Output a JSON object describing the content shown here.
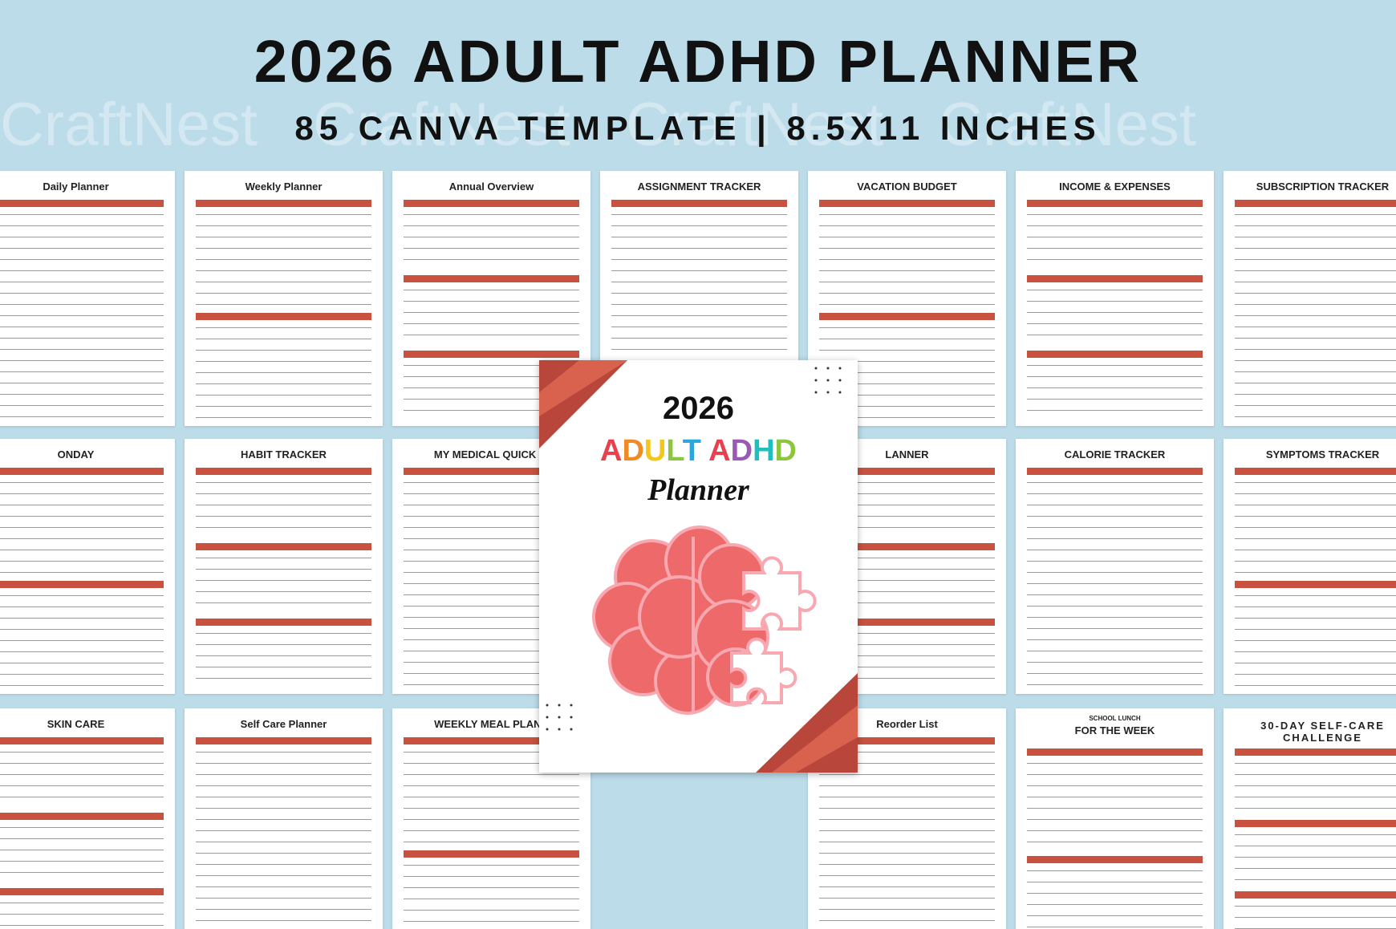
{
  "header": {
    "title": "2026 ADULT ADHD PLANNER",
    "subtitle": "85 CANVA TEMPLATE | 8.5X11 INCHES",
    "watermark": "CraftNest"
  },
  "pages": [
    [
      {
        "title": "Daily Planner"
      },
      {
        "title": "Weekly Planner"
      },
      {
        "title": "Annual Overview"
      },
      {
        "title": "ASSIGNMENT TRACKER"
      },
      {
        "title": "VACATION BUDGET"
      },
      {
        "title": "INCOME & EXPENSES"
      },
      {
        "title": "SUBSCRIPTION TRACKER"
      }
    ],
    [
      {
        "title": "ONDAY"
      },
      {
        "title": "HABIT TRACKER"
      },
      {
        "title": "MY MEDICAL QUICK VI"
      },
      {
        "title": "LANNER"
      },
      {
        "title": "CALORIE TRACKER"
      },
      {
        "title": "SYMPTOMS TRACKER"
      }
    ],
    [
      {
        "title": "SKIN CARE"
      },
      {
        "title": "Self Care Planner"
      },
      {
        "title": "WEEKLY MEAL PLANN"
      },
      {
        "title": "Reorder List"
      },
      {
        "kicker": "SCHOOL LUNCH",
        "title": "FOR THE WEEK"
      },
      {
        "title": "30-DAY SELF-CARE CHALLENGE"
      }
    ]
  ],
  "cover": {
    "year": "2026",
    "title": "ADULT ADHD",
    "script": "Planner"
  }
}
